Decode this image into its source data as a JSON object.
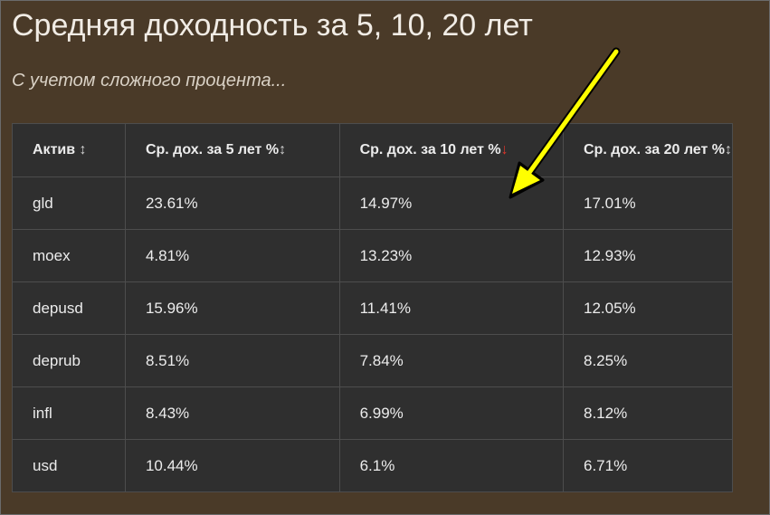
{
  "title": "Средняя доходность за 5, 10, 20 лет",
  "subtitle": "С учетом сложного процента...",
  "table": {
    "headers": [
      {
        "label": "Актив",
        "sort_icon": "↕"
      },
      {
        "label": "Ср. дох. за 5 лет %",
        "sort_icon": "↕"
      },
      {
        "label": "Ср. дох. за 10 лет %",
        "sort_icon": "↓"
      },
      {
        "label": "Ср. дох. за 20 лет %",
        "sort_icon": "↕"
      }
    ],
    "rows": [
      [
        "gld",
        "23.61%",
        "14.97%",
        "17.01%"
      ],
      [
        "moex",
        "4.81%",
        "13.23%",
        "12.93%"
      ],
      [
        "depusd",
        "15.96%",
        "11.41%",
        "12.05%"
      ],
      [
        "deprub",
        "8.51%",
        "7.84%",
        "8.25%"
      ],
      [
        "infl",
        "8.43%",
        "6.99%",
        "8.12%"
      ],
      [
        "usd",
        "10.44%",
        "6.1%",
        "6.71%"
      ]
    ]
  },
  "colors": {
    "background": "#4a3a28",
    "table_bg": "#2f2f2f",
    "active_sort": "#e0352b",
    "annotation_arrow": "#ffff00"
  },
  "annotation": {
    "icon": "yellow-arrow-icon"
  }
}
